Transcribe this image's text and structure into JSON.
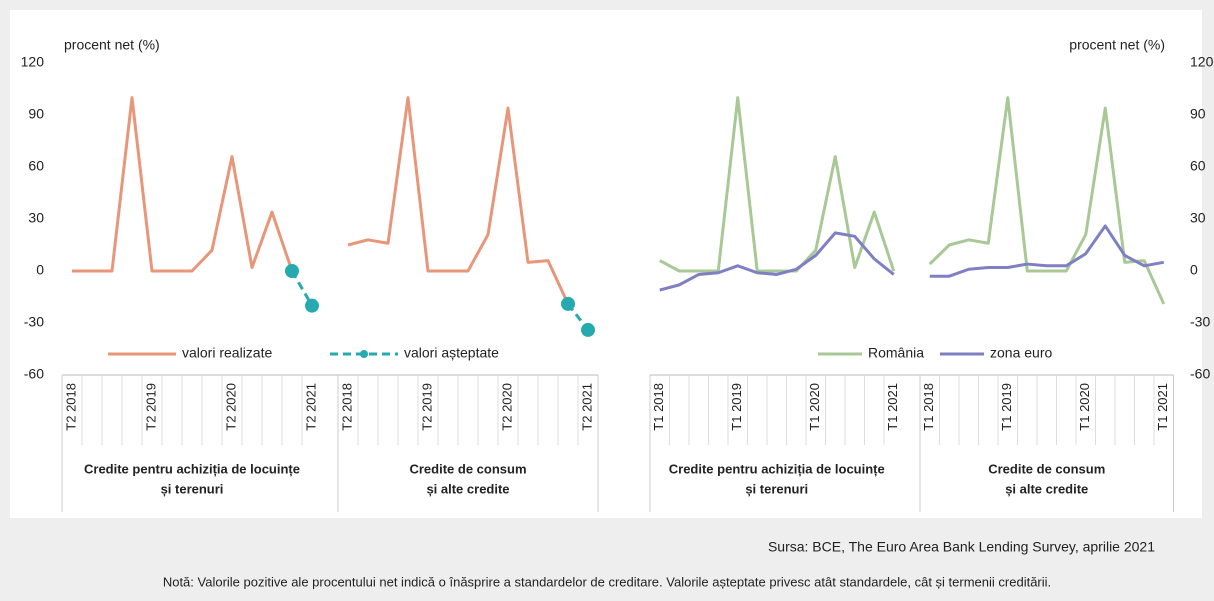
{
  "chart_data": [
    {
      "type": "line",
      "ylabel": "procent net (%)",
      "yaxis_side": "left",
      "ylim": [
        -60,
        120
      ],
      "yticks": [
        -60,
        -30,
        0,
        30,
        60,
        90,
        120
      ],
      "grid": false,
      "legend": "bottom-left",
      "groups": [
        {
          "label": [
            "Credite pentru achiziția de locuințe",
            "și terenuri"
          ],
          "categories": [
            "T2 2018",
            null,
            null,
            null,
            "T2 2019",
            null,
            null,
            null,
            "T2 2020",
            null,
            null,
            null,
            "T2 2021"
          ]
        },
        {
          "label": [
            "Credite de consum",
            "și alte credite"
          ],
          "categories": [
            "T2 2018",
            null,
            null,
            null,
            "T2 2019",
            null,
            null,
            null,
            "T2 2020",
            null,
            null,
            null,
            "T2 2021"
          ]
        }
      ],
      "series": [
        {
          "name": "valori realizate",
          "color": "#e8967a",
          "dashed": false,
          "markers": false,
          "values": [
            [
              0,
              0,
              0,
              100,
              0,
              0,
              0,
              12,
              66,
              2,
              34,
              0,
              null
            ],
            [
              15,
              18,
              16,
              100,
              0,
              0,
              0,
              21,
              94,
              5,
              6,
              -19,
              null
            ]
          ]
        },
        {
          "name": "valori așteptate",
          "color": "#26aab0",
          "dashed": true,
          "markers": true,
          "values": [
            [
              null,
              null,
              null,
              null,
              null,
              null,
              null,
              null,
              null,
              null,
              null,
              0,
              -20
            ],
            [
              null,
              null,
              null,
              null,
              null,
              null,
              null,
              null,
              null,
              null,
              null,
              -19,
              -34
            ]
          ]
        }
      ]
    },
    {
      "type": "line",
      "ylabel": "procent net (%)",
      "yaxis_side": "right",
      "ylim": [
        -60,
        120
      ],
      "yticks": [
        -60,
        -30,
        0,
        30,
        60,
        90,
        120
      ],
      "grid": false,
      "legend": "bottom-right",
      "groups": [
        {
          "label": [
            "Credite pentru achiziția de locuințe",
            "și terenuri"
          ],
          "categories": [
            "T1 2018",
            null,
            null,
            null,
            "T1 2019",
            null,
            null,
            null,
            "T1 2020",
            null,
            null,
            null,
            "T1 2021"
          ]
        },
        {
          "label": [
            "Credite de consum",
            "și alte credite"
          ],
          "categories": [
            "T1 2018",
            null,
            null,
            null,
            "T1 2019",
            null,
            null,
            null,
            "T1 2020",
            null,
            null,
            null,
            "T1 2021"
          ]
        }
      ],
      "series": [
        {
          "name": "România",
          "color": "#a8c896",
          "dashed": false,
          "markers": false,
          "values": [
            [
              6,
              0,
              0,
              0,
              100,
              0,
              0,
              0,
              12,
              66,
              2,
              34,
              0
            ],
            [
              4,
              15,
              18,
              16,
              100,
              0,
              0,
              0,
              21,
              94,
              5,
              6,
              -19
            ]
          ]
        },
        {
          "name": "zona euro",
          "color": "#7f7fc4",
          "dashed": false,
          "markers": false,
          "values": [
            [
              -11,
              -8,
              -2,
              -1,
              3,
              -1,
              -2,
              1,
              9,
              22,
              20,
              7,
              -2
            ],
            [
              -3,
              -3,
              1,
              2,
              2,
              4,
              3,
              3,
              10,
              26,
              9,
              3,
              5
            ]
          ]
        }
      ]
    }
  ],
  "source": "Sursa: BCE, The Euro Area Bank Lending Survey, aprilie 2021",
  "note": "Notă: Valorile pozitive ale procentului net indică o înăsprire a standardelor de creditare. Valorile așteptate privesc atât standardele, cât și termenii creditării."
}
